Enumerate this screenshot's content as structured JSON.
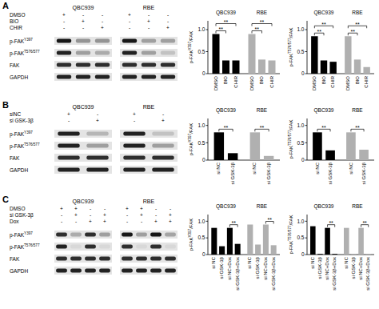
{
  "panels": [
    {
      "letter": "A",
      "blot": {
        "cell_lines": [
          "QBC939",
          "RBE"
        ],
        "treatments": [
          {
            "label": "DMSO",
            "signs": [
              "+",
              "-",
              "-",
              "+",
              "-",
              "-"
            ]
          },
          {
            "label": "BIO",
            "signs": [
              "-",
              "+",
              "-",
              "-",
              "+",
              "-"
            ]
          },
          {
            "label": "CHIR",
            "signs": [
              "-",
              "-",
              "+",
              "-",
              "-",
              "+"
            ]
          }
        ],
        "bands": [
          {
            "text": "p-FAK",
            "sup": "Y397",
            "levels": [
              0.9,
              0.35,
              0.35,
              0.9,
              0.3,
              0.3
            ]
          },
          {
            "text": "p-FAK",
            "sup": "T576/577",
            "levels": [
              0.85,
              0.3,
              0.25,
              0.85,
              0.3,
              0.15
            ]
          },
          {
            "text": "FAK",
            "levels": [
              0.8,
              0.8,
              0.8,
              0.8,
              0.8,
              0.8
            ]
          },
          {
            "text": "GAPDH",
            "levels": [
              0.85,
              0.85,
              0.85,
              0.85,
              0.85,
              0.85
            ]
          }
        ]
      }
    },
    {
      "letter": "B",
      "blot": {
        "cell_lines": [
          "QBC939",
          "RBE"
        ],
        "treatments": [
          {
            "label": "siNC",
            "signs": [
              "+",
              "-",
              "+",
              "-"
            ]
          },
          {
            "label": "si GSK-3β",
            "signs": [
              "-",
              "+",
              "-",
              "+"
            ]
          }
        ],
        "bands": [
          {
            "text": "p-FAK",
            "sup": "Y397",
            "levels": [
              0.85,
              0.2,
              0.85,
              0.15
            ]
          },
          {
            "text": "p-FAK",
            "sup": "T576/577",
            "levels": [
              0.85,
              0.3,
              0.85,
              0.3
            ]
          },
          {
            "text": "FAK",
            "levels": [
              0.8,
              0.8,
              0.8,
              0.8
            ]
          },
          {
            "text": "GAPDH",
            "levels": [
              0.85,
              0.85,
              0.85,
              0.85
            ]
          }
        ]
      }
    },
    {
      "letter": "C",
      "blot": {
        "cell_lines": [
          "QBC939",
          "RBE"
        ],
        "treatments": [
          {
            "label": "DMSO",
            "signs": [
              "+",
              "+",
              "-",
              "-",
              "+",
              "+",
              "-",
              "-"
            ]
          },
          {
            "label": "si GSK-3β",
            "signs": [
              "-",
              "+",
              "-",
              "+",
              "-",
              "+",
              "-",
              "+"
            ]
          },
          {
            "label": "Dox",
            "signs": [
              "-",
              "-",
              "+",
              "+",
              "-",
              "-",
              "+",
              "+"
            ]
          }
        ],
        "bands": [
          {
            "text": "p-FAK",
            "sup": "Y397",
            "levels": [
              0.8,
              0.25,
              0.8,
              0.3,
              0.9,
              0.3,
              0.9,
              0.28
            ]
          },
          {
            "text": "p-FAK",
            "sup": "T576/577",
            "levels": [
              0.85,
              0.05,
              0.8,
              0.05,
              0.8,
              0.05,
              0.8,
              0.05
            ]
          },
          {
            "text": "FAK",
            "levels": [
              0.8,
              0.8,
              0.8,
              0.8,
              0.8,
              0.8,
              0.8,
              0.8
            ]
          },
          {
            "text": "GAPDH",
            "levels": [
              0.85,
              0.85,
              0.85,
              0.85,
              0.85,
              0.85,
              0.85,
              0.85
            ]
          }
        ]
      }
    }
  ],
  "chart_data": [
    {
      "type": "bar",
      "group_labels": [
        "QBC939",
        "RBE"
      ],
      "ylabel": {
        "text": "p-FAK",
        "sup": "Y397",
        "after": "/FAK"
      },
      "categories": [
        "DMSO",
        "BIO",
        "CHIR",
        "DMSO",
        "BIO",
        "CHIR"
      ],
      "values": [
        0.9,
        0.3,
        0.3,
        0.9,
        0.32,
        0.3
      ],
      "colors": [
        "#000000",
        "#000000",
        "#000000",
        "#b0b0b0",
        "#b0b0b0",
        "#b0b0b0"
      ],
      "ylim": [
        0,
        1.2
      ],
      "yticks": [
        0,
        0.5,
        {
          "value": 1,
          "label": "1.0"
        }
      ],
      "brackets": [
        {
          "label": "**",
          "between": [
            0,
            1
          ]
        },
        {
          "label": "**",
          "between": [
            0,
            2
          ]
        },
        {
          "label": "**",
          "between": [
            3,
            4
          ]
        },
        {
          "label": "**",
          "between": [
            3,
            5
          ]
        }
      ]
    },
    {
      "type": "bar",
      "group_labels": [
        "QBC939",
        "RBE"
      ],
      "ylabel": {
        "text": "p-FAK",
        "sup": "T576/577",
        "after": "/FAK"
      },
      "categories": [
        "DMSO",
        "BIO",
        "CHIR",
        "DMSO",
        "BIO",
        "CHIR"
      ],
      "values": [
        0.85,
        0.3,
        0.27,
        0.85,
        0.32,
        0.15
      ],
      "colors": [
        "#000000",
        "#000000",
        "#000000",
        "#b0b0b0",
        "#b0b0b0",
        "#b0b0b0"
      ],
      "ylim": [
        0,
        1.2
      ],
      "yticks": [
        0,
        0.5,
        {
          "value": 1,
          "label": "1.0"
        }
      ],
      "brackets": [
        {
          "label": "**",
          "between": [
            0,
            1
          ]
        },
        {
          "label": "**",
          "between": [
            0,
            2
          ]
        },
        {
          "label": "**",
          "between": [
            3,
            4
          ]
        },
        {
          "label": "**",
          "between": [
            3,
            5
          ]
        }
      ]
    },
    {
      "type": "bar",
      "group_labels": [
        "QBC939",
        "RBE"
      ],
      "ylabel": {
        "text": "p-FAK",
        "sup": "Y397",
        "after": "/FAK"
      },
      "categories": [
        "si NC",
        "si GSK-3β",
        "si NC",
        "si GSK-3β"
      ],
      "values": [
        0.8,
        0.2,
        0.8,
        0.12
      ],
      "colors": [
        "#000000",
        "#000000",
        "#b0b0b0",
        "#b0b0b0"
      ],
      "ylim": [
        0,
        1.2
      ],
      "yticks": [
        0,
        0.5,
        {
          "value": 1,
          "label": "1.0"
        }
      ],
      "brackets": [
        {
          "label": "**",
          "between": [
            0,
            1
          ]
        },
        {
          "label": "**",
          "between": [
            2,
            3
          ]
        }
      ]
    },
    {
      "type": "bar",
      "group_labels": [
        "QBC939",
        "RBE"
      ],
      "ylabel": {
        "text": "p-FAK",
        "sup": "T576/577",
        "after": "/FAK"
      },
      "categories": [
        "si NC",
        "si GSK-3β",
        "si NC",
        "si GSK-3β"
      ],
      "values": [
        0.8,
        0.28,
        0.8,
        0.3
      ],
      "colors": [
        "#000000",
        "#000000",
        "#b0b0b0",
        "#b0b0b0"
      ],
      "ylim": [
        0,
        1.2
      ],
      "yticks": [
        0,
        0.5,
        {
          "value": 1,
          "label": "1.0"
        }
      ],
      "brackets": [
        {
          "label": "**",
          "between": [
            0,
            1
          ]
        },
        {
          "label": "**",
          "between": [
            2,
            3
          ]
        }
      ]
    },
    {
      "type": "bar",
      "group_labels": [
        "QBC939",
        "RBE"
      ],
      "ylabel": {
        "text": "p-FAK",
        "sup": "Y397",
        "after": "/FAK"
      },
      "categories": [
        "si NC",
        "si GSK-3β",
        "si NC+Dox",
        "si GSK-3β+Dox",
        "si NC",
        "si GSK-3β",
        "si NC+Dox",
        "si GSK-3β+Dox"
      ],
      "values": [
        0.8,
        0.25,
        0.8,
        0.32,
        0.9,
        0.3,
        0.9,
        0.28
      ],
      "colors": [
        "#000000",
        "#000000",
        "#000000",
        "#000000",
        "#b0b0b0",
        "#b0b0b0",
        "#b0b0b0",
        "#b0b0b0"
      ],
      "ylim": [
        0,
        1.2
      ],
      "yticks": [
        0,
        0.5,
        {
          "value": 1,
          "label": "1.0"
        }
      ],
      "brackets": [
        {
          "label": "**",
          "between": [
            2,
            3
          ]
        },
        {
          "label": "**",
          "between": [
            6,
            7
          ]
        }
      ]
    },
    {
      "type": "bar",
      "group_labels": [
        "QBC939",
        "RBE"
      ],
      "ylabel": {
        "text": "p-FAK",
        "sup": "T576/577",
        "after": "/FAK"
      },
      "categories": [
        "si NC",
        "si GSK-3β",
        "si NC+Dox",
        "si GSK-3β+Dox",
        "si NC",
        "si GSK-3β",
        "si NC+Dox",
        "si GSK-3β+Dox"
      ],
      "values": [
        0.85,
        0.02,
        0.8,
        0.02,
        0.8,
        0.02,
        0.8,
        0.02
      ],
      "colors": [
        "#000000",
        "#000000",
        "#000000",
        "#000000",
        "#b0b0b0",
        "#b0b0b0",
        "#b0b0b0",
        "#b0b0b0"
      ],
      "ylim": [
        0,
        1.2
      ],
      "yticks": [
        0,
        0.5,
        {
          "value": 1,
          "label": "1.0"
        }
      ],
      "brackets": [
        {
          "label": "**",
          "between": [
            2,
            3
          ]
        },
        {
          "label": "**",
          "between": [
            6,
            7
          ]
        }
      ]
    }
  ]
}
